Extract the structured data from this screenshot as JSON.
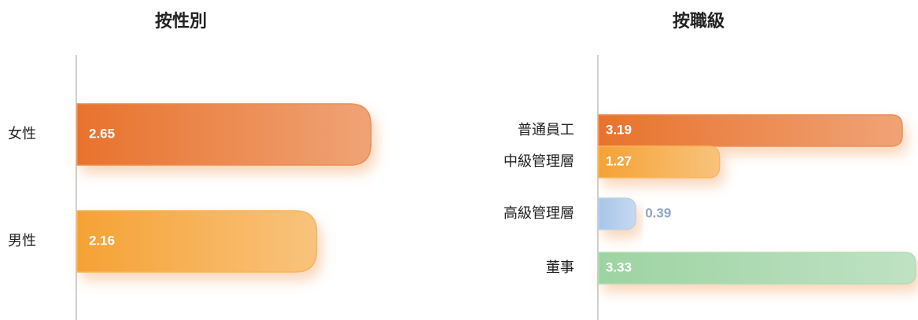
{
  "chart_data": [
    {
      "type": "bar",
      "orientation": "horizontal",
      "title": "按性別",
      "categories": [
        "女性",
        "男性"
      ],
      "values": [
        2.65,
        2.16
      ],
      "colors": [
        "#e8722c",
        "#f5a235"
      ]
    },
    {
      "type": "bar",
      "orientation": "horizontal",
      "title": "按職級",
      "categories": [
        "普通員工",
        "中級管理層",
        "高級管理層",
        "董事"
      ],
      "values": [
        3.19,
        1.27,
        0.39,
        3.33
      ],
      "colors": [
        "#e8722c",
        "#f5a235",
        "#a8c5e9",
        "#9dd3a2"
      ]
    }
  ]
}
